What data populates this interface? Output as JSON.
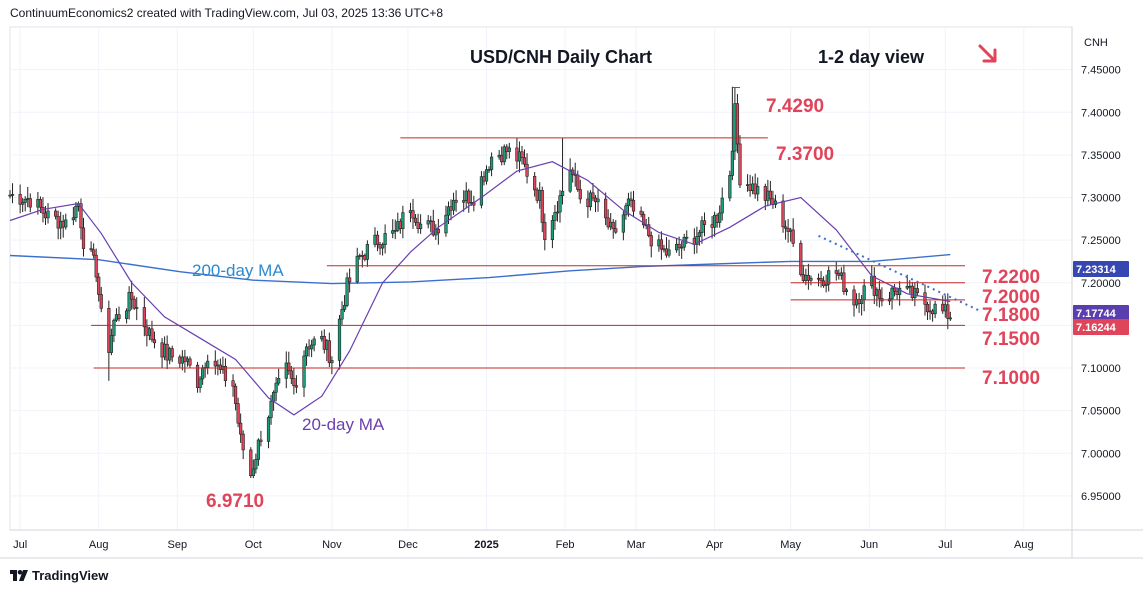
{
  "header": {
    "credit": "ContinuumEconomics2 created with TradingView.com, Jul 03, 2025 13:36 UTC+8"
  },
  "footer": {
    "brand": "TradingView"
  },
  "chart_data": {
    "type": "candlestick",
    "title": "USD/CNH Daily Chart",
    "view": "1-2 day view",
    "view_direction": "down",
    "symbol": "CNH",
    "ylim": [
      6.91,
      7.5
    ],
    "y_ticks": [
      "7.45000",
      "7.40000",
      "7.35000",
      "7.30000",
      "7.25000",
      "7.20000",
      "7.15000",
      "7.10000",
      "7.05000",
      "7.00000",
      "6.95000"
    ],
    "x_ticks": [
      "Jul",
      "Aug",
      "Sep",
      "Oct",
      "Nov",
      "Dec",
      "2025",
      "Feb",
      "Mar",
      "Apr",
      "May",
      "Jun",
      "Jul",
      "Aug"
    ],
    "levels": [
      {
        "label": "7.4290",
        "value": 7.429,
        "from": "2025-04-08",
        "to": "2025-04-11"
      },
      {
        "label": "7.3700",
        "value": 7.37,
        "from": "2024-11-28",
        "to": "2025-04-22"
      },
      {
        "label": "7.2200",
        "value": 7.22,
        "from": "2024-10-30",
        "to": "2025-07-14"
      },
      {
        "label": "7.2000",
        "value": 7.2,
        "from": "2025-05-01",
        "to": "2025-07-14"
      },
      {
        "label": "7.1800",
        "value": 7.18,
        "from": "2025-05-01",
        "to": "2025-07-14"
      },
      {
        "label": "7.1500",
        "value": 7.15,
        "from": "2024-07-29",
        "to": "2025-07-14"
      },
      {
        "label": "7.1000",
        "value": 7.1,
        "from": "2024-07-30",
        "to": "2025-07-14"
      }
    ],
    "low_label": {
      "label": "6.9710",
      "value": 6.971
    },
    "ma_labels": [
      {
        "name": "200-day MA",
        "color": "#2a8bd0"
      },
      {
        "name": "20-day MA",
        "color": "#6a3fb0"
      }
    ],
    "price_tags": [
      {
        "label": "7.23314",
        "value": 7.23314,
        "color": "#3747b2"
      },
      {
        "label": "7.17744",
        "value": 7.17744,
        "color": "#5b3eae"
      },
      {
        "label": "7.16244",
        "value": 7.16244,
        "color": "#e0445a"
      }
    ],
    "trendline": {
      "from": [
        "2025-05-12",
        7.255
      ],
      "to": [
        "2025-07-14",
        7.168
      ]
    },
    "ma200": [
      [
        "2024-06-27",
        7.232
      ],
      [
        "2024-08-01",
        7.227
      ],
      [
        "2024-09-02",
        7.213
      ],
      [
        "2024-10-01",
        7.203
      ],
      [
        "2024-11-01",
        7.199
      ],
      [
        "2024-12-02",
        7.201
      ],
      [
        "2025-01-02",
        7.206
      ],
      [
        "2025-02-03",
        7.214
      ],
      [
        "2025-03-03",
        7.219
      ],
      [
        "2025-04-01",
        7.222
      ],
      [
        "2025-05-01",
        7.225
      ],
      [
        "2025-06-02",
        7.225
      ],
      [
        "2025-07-03",
        7.233
      ]
    ],
    "ma20": [
      [
        "2024-06-27",
        7.273
      ],
      [
        "2024-07-10",
        7.286
      ],
      [
        "2024-07-24",
        7.293
      ],
      [
        "2024-08-02",
        7.258
      ],
      [
        "2024-08-14",
        7.2
      ],
      [
        "2024-08-27",
        7.16
      ],
      [
        "2024-09-10",
        7.135
      ],
      [
        "2024-09-24",
        7.11
      ],
      [
        "2024-10-07",
        7.065
      ],
      [
        "2024-10-17",
        7.045
      ],
      [
        "2024-10-28",
        7.067
      ],
      [
        "2024-11-08",
        7.12
      ],
      [
        "2024-11-21",
        7.2
      ],
      [
        "2024-12-02",
        7.236
      ],
      [
        "2024-12-13",
        7.265
      ],
      [
        "2024-12-30",
        7.3
      ],
      [
        "2025-01-13",
        7.331
      ],
      [
        "2025-01-27",
        7.342
      ],
      [
        "2025-02-10",
        7.32
      ],
      [
        "2025-02-24",
        7.285
      ],
      [
        "2025-03-10",
        7.259
      ],
      [
        "2025-03-24",
        7.245
      ],
      [
        "2025-04-07",
        7.265
      ],
      [
        "2025-04-21",
        7.29
      ],
      [
        "2025-05-05",
        7.3
      ],
      [
        "2025-05-19",
        7.262
      ],
      [
        "2025-06-02",
        7.208
      ],
      [
        "2025-06-16",
        7.187
      ],
      [
        "2025-07-03",
        7.178
      ]
    ],
    "price_path": [
      [
        "2024-06-27",
        7.303
      ],
      [
        "2024-07-05",
        7.298
      ],
      [
        "2024-07-12",
        7.278
      ],
      [
        "2024-07-19",
        7.27
      ],
      [
        "2024-07-24",
        7.293
      ],
      [
        "2024-07-26",
        7.25
      ],
      [
        "2024-07-31",
        7.215
      ],
      [
        "2024-08-02",
        7.16
      ],
      [
        "2024-08-05",
        7.125
      ],
      [
        "2024-08-07",
        7.155
      ],
      [
        "2024-08-14",
        7.182
      ],
      [
        "2024-08-21",
        7.14
      ],
      [
        "2024-08-28",
        7.115
      ],
      [
        "2024-09-04",
        7.11
      ],
      [
        "2024-09-09",
        7.085
      ],
      [
        "2024-09-13",
        7.118
      ],
      [
        "2024-09-18",
        7.095
      ],
      [
        "2024-09-23",
        7.08
      ],
      [
        "2024-09-26",
        7.015
      ],
      [
        "2024-09-30",
        6.975
      ],
      [
        "2024-10-04",
        7.022
      ],
      [
        "2024-10-10",
        7.072
      ],
      [
        "2024-10-14",
        7.098
      ],
      [
        "2024-10-17",
        7.078
      ],
      [
        "2024-10-22",
        7.128
      ],
      [
        "2024-10-28",
        7.132
      ],
      [
        "2024-11-01",
        7.112
      ],
      [
        "2024-11-05",
        7.17
      ],
      [
        "2024-11-07",
        7.195
      ],
      [
        "2024-11-12",
        7.23
      ],
      [
        "2024-11-19",
        7.25
      ],
      [
        "2024-11-26",
        7.258
      ],
      [
        "2024-12-02",
        7.292
      ],
      [
        "2024-12-06",
        7.268
      ],
      [
        "2024-12-12",
        7.263
      ],
      [
        "2024-12-19",
        7.3
      ],
      [
        "2024-12-27",
        7.302
      ],
      [
        "2025-01-03",
        7.348
      ],
      [
        "2025-01-09",
        7.355
      ],
      [
        "2025-01-15",
        7.342
      ],
      [
        "2025-01-22",
        7.3
      ],
      [
        "2025-01-24",
        7.26
      ],
      [
        "2025-01-30",
        7.3
      ],
      [
        "2025-02-03",
        7.335
      ],
      [
        "2025-02-07",
        7.3
      ],
      [
        "2025-02-13",
        7.295
      ],
      [
        "2025-02-20",
        7.255
      ],
      [
        "2025-02-26",
        7.292
      ],
      [
        "2025-03-04",
        7.265
      ],
      [
        "2025-03-10",
        7.24
      ],
      [
        "2025-03-14",
        7.233
      ],
      [
        "2025-03-20",
        7.245
      ],
      [
        "2025-03-27",
        7.262
      ],
      [
        "2025-04-02",
        7.278
      ],
      [
        "2025-04-07",
        7.33
      ],
      [
        "2025-04-09",
        7.4
      ],
      [
        "2025-04-11",
        7.325
      ],
      [
        "2025-04-17",
        7.31
      ],
      [
        "2025-04-24",
        7.294
      ],
      [
        "2025-04-30",
        7.262
      ],
      [
        "2025-05-06",
        7.21
      ],
      [
        "2025-05-12",
        7.205
      ],
      [
        "2025-05-19",
        7.212
      ],
      [
        "2025-05-26",
        7.18
      ],
      [
        "2025-06-02",
        7.2
      ],
      [
        "2025-06-06",
        7.182
      ],
      [
        "2025-06-12",
        7.192
      ],
      [
        "2025-06-18",
        7.185
      ],
      [
        "2025-06-24",
        7.175
      ],
      [
        "2025-06-30",
        7.165
      ],
      [
        "2025-07-03",
        7.162
      ]
    ]
  }
}
